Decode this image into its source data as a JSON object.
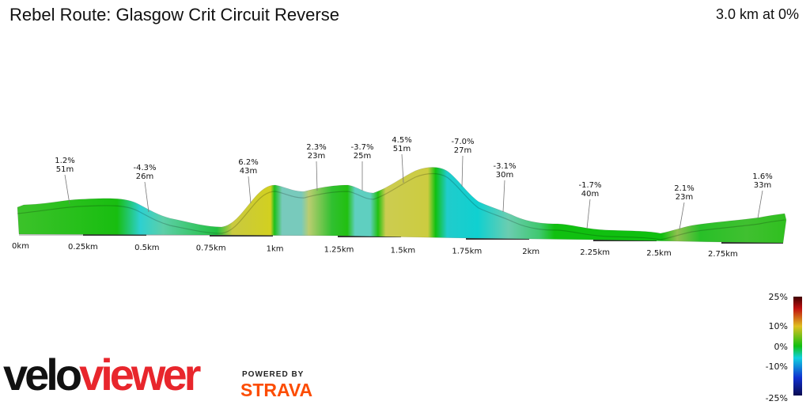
{
  "header": {
    "title": "Rebel Route: Glasgow Crit Circuit Reverse",
    "summary": "3.0 km at 0%"
  },
  "annotations": [
    {
      "grade": "1.2%",
      "length": "51m"
    },
    {
      "grade": "-4.3%",
      "length": "26m"
    },
    {
      "grade": "6.2%",
      "length": "43m"
    },
    {
      "grade": "2.3%",
      "length": "23m"
    },
    {
      "grade": "-3.7%",
      "length": "25m"
    },
    {
      "grade": "4.5%",
      "length": "51m"
    },
    {
      "grade": "-7.0%",
      "length": "27m"
    },
    {
      "grade": "-3.1%",
      "length": "30m"
    },
    {
      "grade": "-1.7%",
      "length": "40m"
    },
    {
      "grade": "2.1%",
      "length": "23m"
    },
    {
      "grade": "1.6%",
      "length": "33m"
    }
  ],
  "distance_ticks": [
    "0km",
    "0.25km",
    "0.5km",
    "0.75km",
    "1km",
    "1.25km",
    "1.5km",
    "1.75km",
    "2km",
    "2.25km",
    "2.5km",
    "2.75km"
  ],
  "legend": {
    "labels": [
      "25%",
      "10%",
      "0%",
      "-10%",
      "-25%"
    ]
  },
  "colors": {
    "climb": "#cccc30",
    "flat": "#22c01a",
    "descent": "#2dd0d0",
    "strava": "#fc4c02",
    "logo_red": "#e8262c"
  },
  "branding": {
    "logo_part1": "velo",
    "logo_part2": "viewer",
    "powered_by": "POWERED BY",
    "strava": "STRAVA"
  }
}
